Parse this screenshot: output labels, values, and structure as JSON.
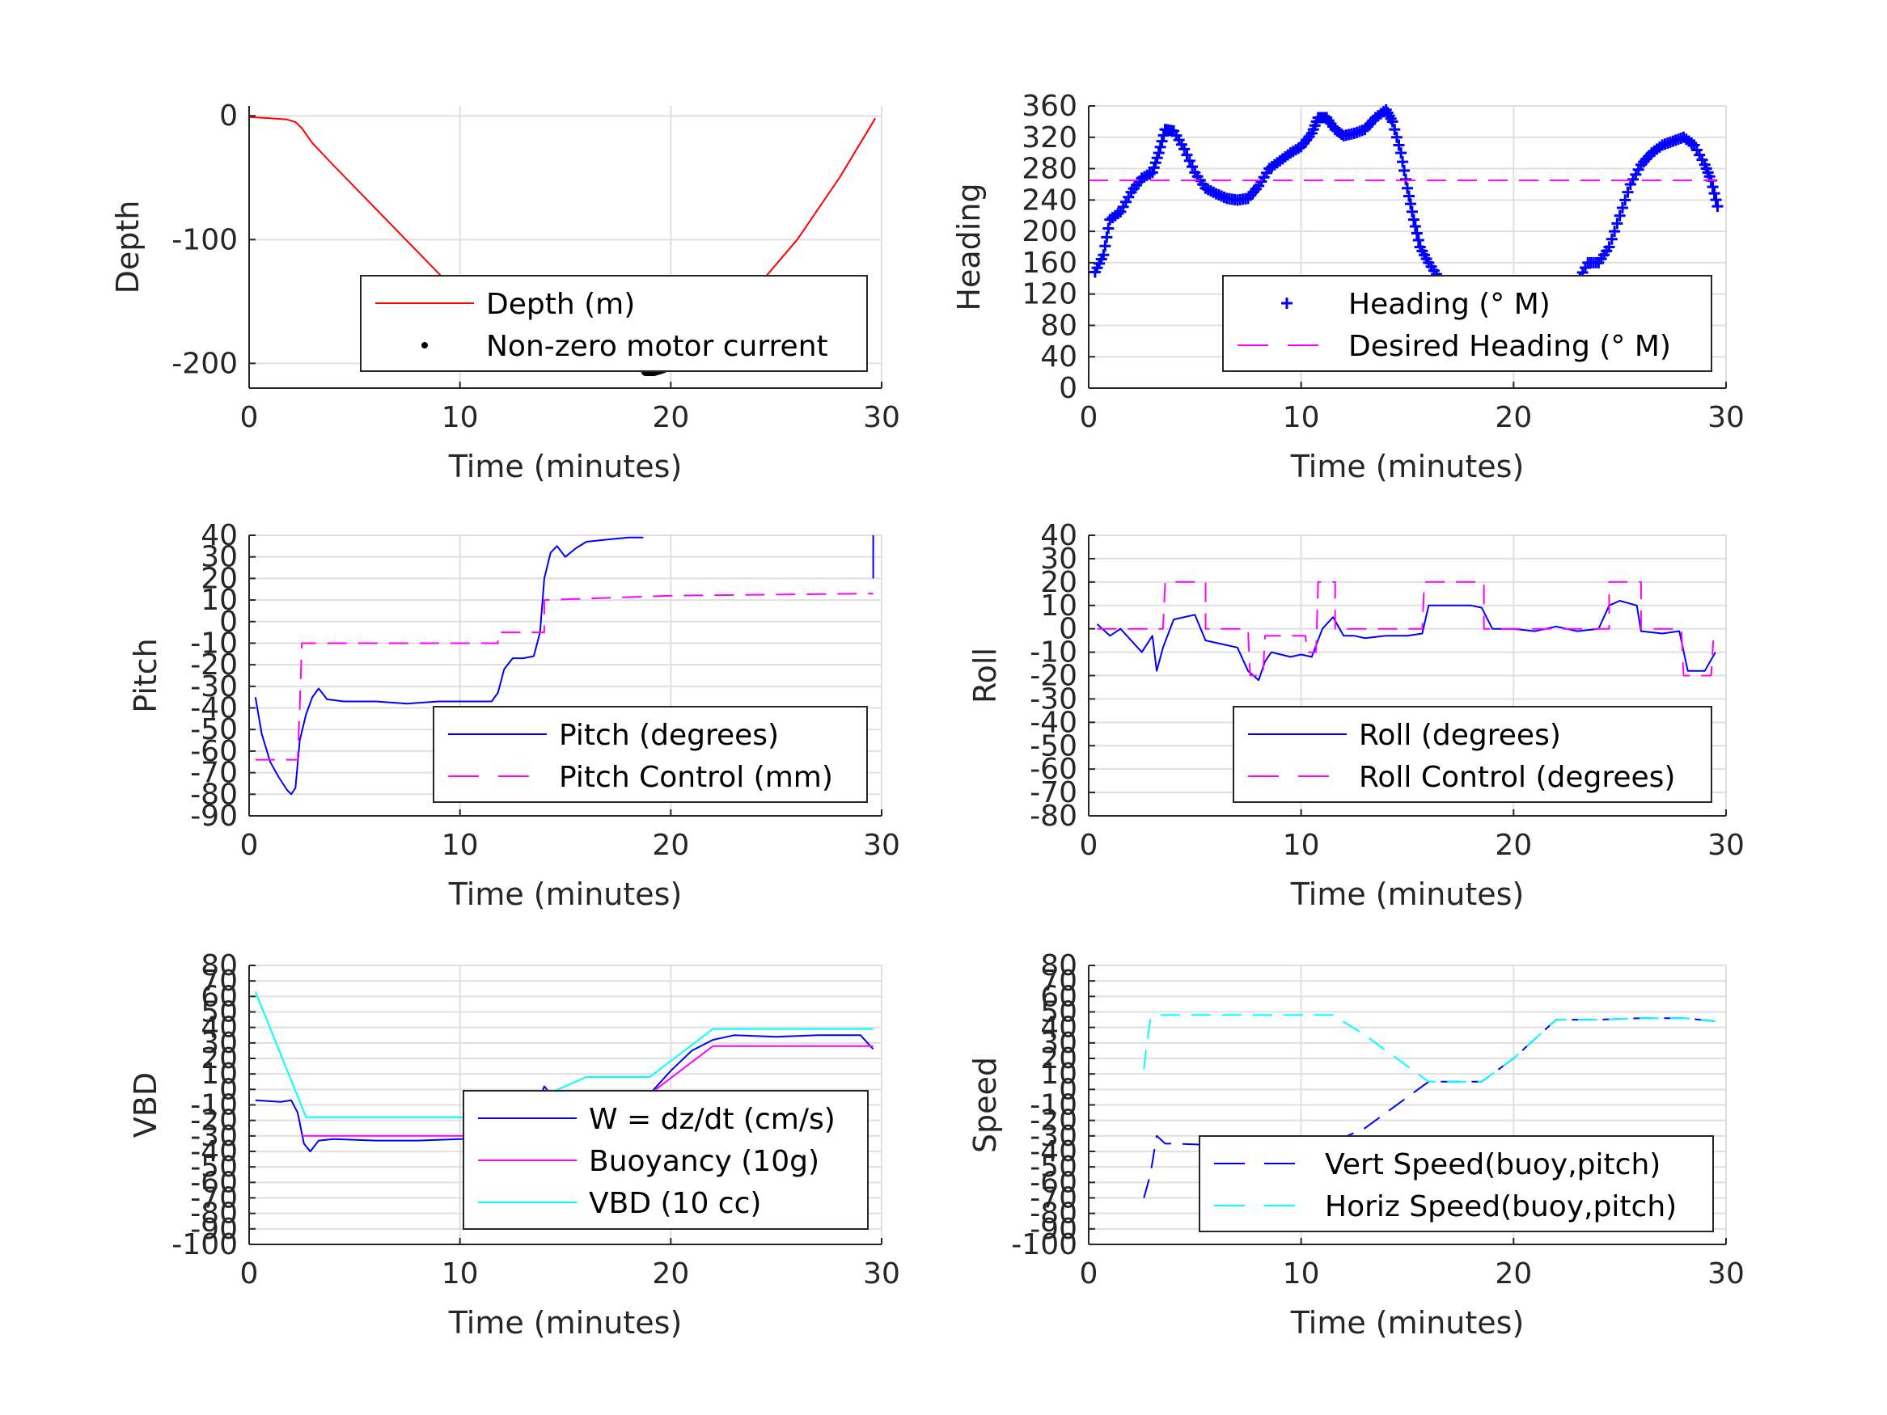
{
  "chart_data": [
    {
      "type": "line",
      "id": "depth",
      "title": "",
      "xlabel": "Time (minutes)",
      "ylabel": "Depth",
      "xlim": [
        0,
        30
      ],
      "ylim": [
        -220,
        8
      ],
      "xticks": [
        0,
        10,
        20,
        30
      ],
      "yticks": [
        0,
        -100,
        -200
      ],
      "grid": true,
      "legend_position": "lower-right",
      "series": [
        {
          "name": "Depth (m)",
          "color": "#ff0000",
          "style": "solid",
          "x": [
            0,
            1,
            1.8,
            2.2,
            2.5,
            3,
            4,
            6,
            8,
            10,
            12,
            14,
            16,
            18,
            18.8,
            19.5,
            20.5,
            21.5,
            22.5,
            24,
            26,
            28,
            29.7
          ],
          "y": [
            -1,
            -2,
            -3,
            -5,
            -10,
            -22,
            -40,
            -75,
            -110,
            -145,
            -178,
            -192,
            -200,
            -205,
            -207,
            -205,
            -197,
            -185,
            -168,
            -140,
            -100,
            -50,
            -2
          ]
        },
        {
          "name": "Non-zero motor current",
          "color": "#000000",
          "style": "dots",
          "x": [
            11.8,
            12.3,
            12.8,
            13.3,
            13.8,
            14.3,
            14.8,
            15.3,
            15.7,
            18.8,
            19.2,
            19.6,
            20.0,
            20.4,
            20.8,
            21.2,
            21.6,
            22.0
          ],
          "y": [
            -185,
            -190,
            -193,
            -196,
            -198,
            -196,
            -199,
            -201,
            -202,
            -207,
            -207,
            -205,
            -202,
            -198,
            -193,
            -187,
            -180,
            -172
          ]
        }
      ]
    },
    {
      "type": "line",
      "id": "heading",
      "title": "",
      "xlabel": "Time (minutes)",
      "ylabel": "Heading",
      "xlim": [
        0,
        30
      ],
      "ylim": [
        0,
        360
      ],
      "xticks": [
        0,
        10,
        20,
        30
      ],
      "yticks": [
        0,
        40,
        80,
        120,
        160,
        200,
        240,
        280,
        320,
        360
      ],
      "grid": true,
      "legend_position": "lower-right",
      "series": [
        {
          "name": "Heading (° M)",
          "color": "#0000ff",
          "style": "plus",
          "x": [
            0.3,
            0.7,
            1.0,
            1.5,
            2.0,
            2.5,
            3.0,
            3.3,
            3.6,
            4.0,
            4.5,
            5.0,
            5.5,
            6.0,
            6.5,
            7.0,
            7.5,
            8.0,
            8.5,
            9.0,
            9.5,
            10.0,
            10.5,
            10.8,
            11.2,
            11.6,
            12.0,
            12.5,
            13.0,
            13.5,
            14.0,
            14.3,
            14.7,
            15.0,
            15.3,
            15.6,
            16.0,
            16.5,
            17.0,
            17.5,
            18.0,
            18.5,
            19.0,
            19.5,
            20.0,
            20.5,
            21.0,
            21.5,
            22.0,
            22.5,
            23.0,
            23.5,
            24.0,
            24.5,
            25.0,
            25.5,
            26.0,
            26.5,
            27.0,
            27.5,
            28.0,
            28.5,
            29.0,
            29.3,
            29.6
          ],
          "y": [
            148,
            170,
            215,
            225,
            250,
            268,
            275,
            300,
            330,
            328,
            305,
            275,
            255,
            248,
            242,
            240,
            242,
            258,
            280,
            290,
            300,
            308,
            325,
            345,
            345,
            330,
            322,
            325,
            330,
            345,
            355,
            340,
            300,
            255,
            215,
            180,
            160,
            140,
            120,
            105,
            90,
            75,
            65,
            62,
            66,
            78,
            92,
            100,
            100,
            110,
            135,
            160,
            160,
            180,
            220,
            260,
            285,
            300,
            310,
            315,
            320,
            310,
            285,
            265,
            232
          ]
        },
        {
          "name": "Desired Heading (° M)",
          "color": "#ff00ff",
          "style": "dashed",
          "x": [
            0,
            29.6
          ],
          "y": [
            265,
            265
          ]
        }
      ]
    },
    {
      "type": "line",
      "id": "pitch",
      "title": "",
      "xlabel": "Time (minutes)",
      "ylabel": "Pitch",
      "xlim": [
        0,
        30
      ],
      "ylim": [
        -90,
        40
      ],
      "xticks": [
        0,
        10,
        20,
        30
      ],
      "yticks": [
        40,
        30,
        20,
        10,
        0,
        -10,
        -20,
        -30,
        -40,
        -50,
        -60,
        -70,
        -80,
        -90
      ],
      "grid": true,
      "legend_position": "lower-right",
      "series": [
        {
          "name": "Pitch (degrees)",
          "color": "#0000ff",
          "style": "solid",
          "x": [
            0.3,
            0.6,
            1.0,
            1.4,
            1.8,
            2.0,
            2.2,
            2.4,
            2.7,
            3.0,
            3.3,
            3.7,
            4.5,
            6,
            7.5,
            9,
            10.5,
            11.5,
            11.8,
            12.1,
            12.5,
            13,
            13.5,
            13.8,
            14.0,
            14.3,
            14.6,
            15.0,
            15.5,
            16.0,
            17.0,
            18.0,
            18.7
          ],
          "y": [
            -35,
            -52,
            -65,
            -72,
            -78,
            -80,
            -77,
            -55,
            -43,
            -35,
            -31,
            -36,
            -37,
            -37,
            -38,
            -37,
            -37,
            -37,
            -33,
            -22,
            -17,
            -17,
            -16,
            -5,
            20,
            32,
            35,
            30,
            34,
            37,
            38,
            39,
            39
          ]
        },
        {
          "name": "",
          "color": "#0000ff",
          "style": "solid",
          "x": [
            29.6,
            29.6
          ],
          "y": [
            40,
            20
          ]
        },
        {
          "name": "Pitch Control (mm)",
          "color": "#ff00ff",
          "style": "dashed",
          "x": [
            0.3,
            1.8,
            1.8,
            2.3,
            2.4,
            2.5,
            6,
            11.8,
            11.8,
            12.8,
            13.0,
            14.0,
            14.0,
            20,
            29.6
          ],
          "y": [
            -64,
            -64,
            -64,
            -64,
            -40,
            -10,
            -10,
            -10,
            -5,
            -5,
            -5,
            -5,
            10,
            12,
            13
          ]
        }
      ]
    },
    {
      "type": "line",
      "id": "roll",
      "title": "",
      "xlabel": "Time (minutes)",
      "ylabel": "Roll",
      "xlim": [
        0,
        30
      ],
      "ylim": [
        -80,
        40
      ],
      "xticks": [
        0,
        10,
        20,
        30
      ],
      "yticks": [
        40,
        30,
        20,
        10,
        0,
        -10,
        -20,
        -30,
        -40,
        -50,
        -60,
        -70,
        -80
      ],
      "grid": true,
      "legend_position": "lower-right",
      "series": [
        {
          "name": "Roll (degrees)",
          "color": "#0000ff",
          "style": "solid",
          "x": [
            0.4,
            1.0,
            1.5,
            2.0,
            2.5,
            3.0,
            3.2,
            3.5,
            4.0,
            5.0,
            5.5,
            6.0,
            7.0,
            7.5,
            8.0,
            8.3,
            8.6,
            9.5,
            10.0,
            10.5,
            11.0,
            11.5,
            12.0,
            12.5,
            13.0,
            14.0,
            15.0,
            15.7,
            16.0,
            17.0,
            18.0,
            18.5,
            19.0,
            20.0,
            21.0,
            22.0,
            23.0,
            24.0,
            24.5,
            25.0,
            25.8,
            26.0,
            27.0,
            27.8,
            28.2,
            29.0,
            29.5
          ],
          "y": [
            2,
            -3,
            0,
            -5,
            -10,
            -3,
            -18,
            -8,
            4,
            6,
            -5,
            -6,
            -8,
            -18,
            -22,
            -14,
            -10,
            -12,
            -11,
            -12,
            0,
            5,
            -3,
            -3,
            -4,
            -3,
            -3,
            -2,
            10,
            10,
            10,
            9,
            0,
            0,
            -1,
            1,
            -1,
            0,
            10,
            12,
            10,
            -1,
            -2,
            -1,
            -18,
            -18,
            -10
          ]
        },
        {
          "name": "Roll Control (degrees)",
          "color": "#ff00ff",
          "style": "dashed",
          "x": [
            0.4,
            3.5,
            3.6,
            5.5,
            5.5,
            7.5,
            7.6,
            8.2,
            8.3,
            10.2,
            10.3,
            10.7,
            10.8,
            11.6,
            11.6,
            15.7,
            15.8,
            18.6,
            18.6,
            24.5,
            24.5,
            26.0,
            26.0,
            27.9,
            28.0,
            29.3,
            29.4
          ],
          "y": [
            0,
            0,
            20,
            20,
            0,
            0,
            -20,
            -20,
            -3,
            -3,
            -10,
            -10,
            20,
            20,
            0,
            0,
            20,
            20,
            0,
            0,
            20,
            20,
            0,
            0,
            -20,
            -20,
            -5
          ]
        }
      ]
    },
    {
      "type": "line",
      "id": "vbd",
      "title": "",
      "xlabel": "Time (minutes)",
      "ylabel": "VBD",
      "xlim": [
        0,
        30
      ],
      "ylim": [
        -100,
        80
      ],
      "xticks": [
        0,
        10,
        20,
        30
      ],
      "yticks": [
        80,
        70,
        60,
        50,
        40,
        30,
        20,
        10,
        0,
        -10,
        -20,
        -30,
        -40,
        -50,
        -60,
        -70,
        -80,
        -90,
        -100
      ],
      "grid": true,
      "legend_position": "lower-right",
      "series": [
        {
          "name": "W = dz/dt (cm/s)",
          "color": "#0000ff",
          "style": "solid",
          "x": [
            0.3,
            1.5,
            2.0,
            2.3,
            2.6,
            2.9,
            3.3,
            4,
            6,
            8,
            10,
            11.5,
            12,
            12.5,
            13,
            13.6,
            14.0,
            14.3,
            14.6,
            15,
            16,
            17,
            18,
            19,
            20,
            21,
            22,
            23,
            25,
            27,
            29,
            29.6
          ],
          "y": [
            -7,
            -8,
            -7,
            -15,
            -35,
            -40,
            -33,
            -32,
            -33,
            -33,
            -32,
            -32,
            -25,
            -20,
            -17,
            -14,
            2,
            -3,
            -13,
            -14,
            -13,
            -10,
            -8,
            -3,
            12,
            25,
            32,
            35,
            34,
            35,
            35,
            26
          ]
        },
        {
          "name": "Buoyancy (10g)",
          "color": "#ff00ff",
          "style": "solid",
          "x": [
            2.5,
            11.5,
            16,
            19,
            22,
            29.6
          ],
          "y": [
            -30,
            -30,
            -3,
            -3,
            28,
            28
          ]
        },
        {
          "name": "VBD (10 cc)",
          "color": "#00ffff",
          "style": "solid",
          "x": [
            0.3,
            2.7,
            11.6,
            16,
            19,
            22,
            29.6
          ],
          "y": [
            63,
            -18,
            -18,
            8,
            8,
            39,
            39
          ]
        }
      ]
    },
    {
      "type": "line",
      "id": "speed",
      "title": "",
      "xlabel": "Time (minutes)",
      "ylabel": "Speed",
      "xlim": [
        0,
        30
      ],
      "ylim": [
        -100,
        80
      ],
      "xticks": [
        0,
        10,
        20,
        30
      ],
      "yticks": [
        80,
        70,
        60,
        50,
        40,
        30,
        20,
        10,
        0,
        -10,
        -20,
        -30,
        -40,
        -50,
        -60,
        -70,
        -80,
        -90,
        -100
      ],
      "grid": true,
      "legend_position": "lower-right",
      "series": [
        {
          "name": "Vert Speed(buoy,pitch)",
          "color": "#0000ff",
          "style": "dashed",
          "x": [
            2.6,
            2.9,
            3.2,
            3.6,
            4,
            6,
            8,
            10,
            11.5,
            13,
            16,
            18.5,
            20,
            22,
            24,
            26,
            28,
            29.5
          ],
          "y": [
            -70,
            -55,
            -30,
            -35,
            -35,
            -36,
            -34,
            -35,
            -34,
            -25,
            5,
            5,
            20,
            45,
            45,
            46,
            46,
            44
          ]
        },
        {
          "name": "Horiz Speed(buoy,pitch)",
          "color": "#00ffff",
          "style": "dashed",
          "x": [
            2.6,
            2.7,
            2.9,
            3.3,
            6,
            9,
            11.5,
            13,
            16,
            18.5,
            20,
            22,
            24,
            26,
            28,
            29.5
          ],
          "y": [
            13,
            25,
            45,
            48,
            48,
            48,
            48,
            35,
            5,
            5,
            20,
            45,
            45,
            46,
            46,
            44
          ]
        }
      ]
    }
  ]
}
